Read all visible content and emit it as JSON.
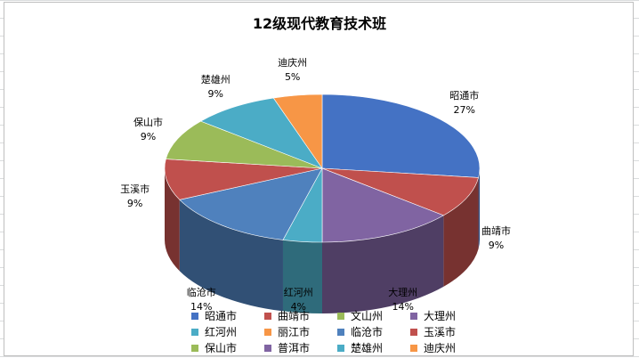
{
  "chart_data": {
    "type": "pie",
    "title": "12级现代教育技术班",
    "series": [
      {
        "name": "昭通市",
        "value": 27,
        "label": "27%",
        "color": "#4472C4"
      },
      {
        "name": "曲靖市",
        "value": 9,
        "label": "9%",
        "color": "#C0504D"
      },
      {
        "name": "文山州",
        "value": 0,
        "label": "",
        "color": "#9BBB59"
      },
      {
        "name": "大理州",
        "value": 14,
        "label": "14%",
        "color": "#8064A2"
      },
      {
        "name": "红河州",
        "value": 4,
        "label": "4%",
        "color": "#4BACC6"
      },
      {
        "name": "丽江市",
        "value": 0,
        "label": "",
        "color": "#F79646"
      },
      {
        "name": "临沧市",
        "value": 14,
        "label": "14%",
        "color": "#4F81BD"
      },
      {
        "name": "玉溪市",
        "value": 9,
        "label": "9%",
        "color": "#C0504D"
      },
      {
        "name": "保山市",
        "value": 9,
        "label": "9%",
        "color": "#9BBB59"
      },
      {
        "name": "普洱市",
        "value": 0,
        "label": "",
        "color": "#8064A2"
      },
      {
        "name": "楚雄州",
        "value": 9,
        "label": "9%",
        "color": "#4BACC6"
      },
      {
        "name": "迪庆州",
        "value": 5,
        "label": "5%",
        "color": "#F79646"
      }
    ],
    "legend_position": "bottom"
  }
}
